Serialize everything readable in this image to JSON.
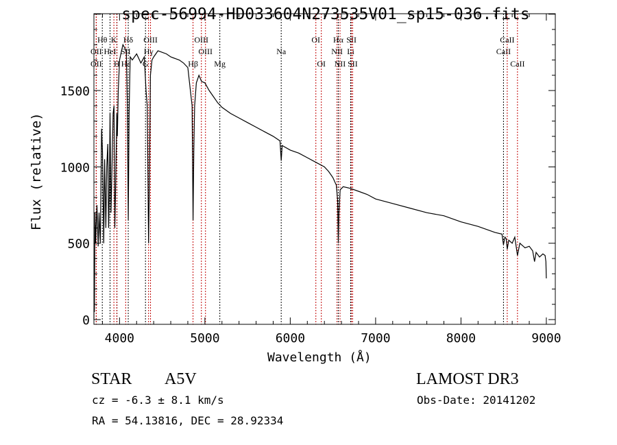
{
  "chart_data": {
    "type": "line",
    "title": "spec-56994-HD033604N273535V01_sp15-036.fits",
    "xlabel": "Wavelength (Å)",
    "ylabel": "Flux (relative)",
    "xlim": [
      3700,
      9105
    ],
    "ylim": [
      -31,
      2003
    ],
    "xticks": [
      4000,
      5000,
      6000,
      7000,
      8000,
      9000
    ],
    "yticks": [
      0,
      500,
      1000,
      1500
    ],
    "grid": false,
    "series": [
      {
        "name": "spectrum",
        "x": [
          3700,
          3703,
          3706,
          3712,
          3720,
          3735,
          3750,
          3760,
          3775,
          3790,
          3800,
          3815,
          3825,
          3840,
          3850,
          3862,
          3872,
          3880,
          3889,
          3900,
          3912,
          3925,
          3935,
          3945,
          3955,
          3968,
          3975,
          3985,
          4000,
          4020,
          4040,
          4060,
          4080,
          4092,
          4102,
          4112,
          4125,
          4150,
          4200,
          4250,
          4290,
          4310,
          4325,
          4340,
          4350,
          4362,
          4380,
          4400,
          4450,
          4500,
          4550,
          4600,
          4650,
          4700,
          4750,
          4800,
          4830,
          4850,
          4861,
          4870,
          4880,
          4900,
          4930,
          4960,
          5000,
          5050,
          5100,
          5150,
          5200,
          5300,
          5400,
          5500,
          5600,
          5700,
          5800,
          5880,
          5894,
          5905,
          6000,
          6100,
          6200,
          6300,
          6400,
          6450,
          6500,
          6540,
          6555,
          6563,
          6570,
          6585,
          6620,
          6700,
          6800,
          6900,
          7000,
          7200,
          7400,
          7600,
          7800,
          8000,
          8200,
          8400,
          8480,
          8498,
          8515,
          8530,
          8542,
          8560,
          8600,
          8630,
          8662,
          8690,
          8750,
          8800,
          8840,
          8862,
          8880,
          8920,
          8960,
          8985,
          8995,
          9000
        ],
        "y": [
          0,
          300,
          50,
          700,
          500,
          750,
          480,
          700,
          500,
          1250,
          1100,
          500,
          1050,
          600,
          1000,
          1150,
          600,
          800,
          1350,
          700,
          1000,
          1350,
          1400,
          600,
          900,
          1350,
          1200,
          1500,
          1700,
          1750,
          1800,
          1780,
          1750,
          1400,
          650,
          1350,
          1720,
          1700,
          1740,
          1680,
          1720,
          1500,
          1400,
          500,
          900,
          1600,
          1700,
          1720,
          1760,
          1750,
          1740,
          1720,
          1710,
          1700,
          1680,
          1650,
          1500,
          1400,
          650,
          1100,
          1400,
          1550,
          1600,
          1560,
          1550,
          1500,
          1460,
          1420,
          1390,
          1350,
          1320,
          1290,
          1260,
          1230,
          1200,
          1170,
          1040,
          1140,
          1110,
          1090,
          1060,
          1030,
          1000,
          970,
          930,
          880,
          780,
          500,
          700,
          850,
          870,
          860,
          840,
          820,
          790,
          760,
          730,
          700,
          680,
          640,
          610,
          570,
          560,
          490,
          540,
          530,
          460,
          520,
          500,
          540,
          420,
          500,
          470,
          480,
          450,
          380,
          440,
          410,
          430,
          420,
          380,
          270
        ],
        "color": "#000000"
      }
    ],
    "lines": [
      {
        "label": "OII",
        "wl": 3727,
        "row": 1,
        "color": "#c00000"
      },
      {
        "label": "OII",
        "wl": 3727,
        "row": 2,
        "color": "#c00000"
      },
      {
        "label": "Hθ",
        "wl": 3798,
        "row": 0,
        "color": "#000000"
      },
      {
        "label": "HeI",
        "wl": 3889,
        "row": 1,
        "color": "#000000"
      },
      {
        "label": "Hε",
        "wl": 3970,
        "row": 2,
        "color": "#000000"
      },
      {
        "label": "K",
        "wl": 3934,
        "row": 0,
        "color": "#c00000"
      },
      {
        "label": "H",
        "wl": 3968,
        "row": 2,
        "color": "#c00000"
      },
      {
        "label": "SII",
        "wl": 4072,
        "row": 1,
        "color": "#c00000"
      },
      {
        "label": "Hδ",
        "wl": 4102,
        "row": 0,
        "color": "#000000"
      },
      {
        "label": "G",
        "wl": 4304,
        "row": 2,
        "color": "#000000"
      },
      {
        "label": "Hγ",
        "wl": 4340,
        "row": 1,
        "color": "#c00000"
      },
      {
        "label": "OIII",
        "wl": 4363,
        "row": 0,
        "color": "#c00000"
      },
      {
        "label": "Hβ",
        "wl": 4861,
        "row": 2,
        "color": "#c00000"
      },
      {
        "label": "OIII",
        "wl": 4959,
        "row": 0,
        "color": "#c00000"
      },
      {
        "label": "OIII",
        "wl": 5007,
        "row": 1,
        "color": "#c00000"
      },
      {
        "label": "Mg",
        "wl": 5175,
        "row": 2,
        "color": "#000000"
      },
      {
        "label": "Na",
        "wl": 5894,
        "row": 1,
        "color": "#000000"
      },
      {
        "label": "OI",
        "wl": 6300,
        "row": 0,
        "color": "#c00000"
      },
      {
        "label": "OI",
        "wl": 6364,
        "row": 2,
        "color": "#c00000"
      },
      {
        "label": "NII",
        "wl": 6548,
        "row": 1,
        "color": "#c00000"
      },
      {
        "label": "Hα",
        "wl": 6563,
        "row": 0,
        "color": "#000000"
      },
      {
        "label": "NII",
        "wl": 6583,
        "row": 2,
        "color": "#c00000"
      },
      {
        "label": "Li",
        "wl": 6708,
        "row": 1,
        "color": "#000000"
      },
      {
        "label": "SII",
        "wl": 6717,
        "row": 0,
        "color": "#c00000"
      },
      {
        "label": "SII",
        "wl": 6731,
        "row": 2,
        "color": "#c00000"
      },
      {
        "label": "CaII",
        "wl": 8498,
        "row": 1,
        "color": "#000000"
      },
      {
        "label": "CaII",
        "wl": 8542,
        "row": 0,
        "color": "#c00000"
      },
      {
        "label": "CaII",
        "wl": 8662,
        "row": 2,
        "color": "#c00000"
      }
    ]
  },
  "info": {
    "object_type": "STAR",
    "subclass": "A5V",
    "survey": "LAMOST DR3",
    "cz": "cz = -6.3 ± 8.1 km/s",
    "obs_date": "Obs-Date: 20141202",
    "coords": "RA =  54.13816, DEC =  28.92334"
  }
}
